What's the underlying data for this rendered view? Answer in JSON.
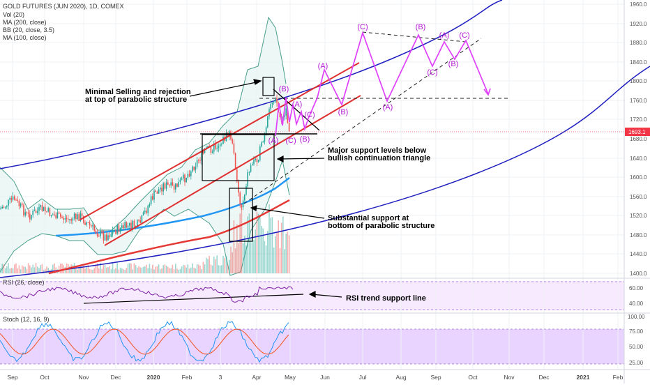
{
  "header": {
    "symbol_line": "GOLD FUTURES (JUN 2020), 1D, COMEX",
    "indicators": [
      "Vol (20)",
      "MA (200, close)",
      "BB (20, close, 3.5)",
      "MA (100, close)"
    ]
  },
  "price_axis": {
    "ticks": [
      "1960.0",
      "1920.0",
      "1880.0",
      "1840.0",
      "1800.0",
      "1760.0",
      "1720.0",
      "1680.0",
      "1640.0",
      "1600.0",
      "1560.0",
      "1520.0",
      "1480.0",
      "1440.0",
      "1400.0"
    ],
    "current_price": "1693.1"
  },
  "rsi_panel": {
    "label": "RSI (26, close)",
    "ticks": [
      "60.00",
      "40.00"
    ]
  },
  "stoch_panel": {
    "label": "Stoch (12, 16, 9)",
    "ticks": [
      "100.00",
      "75.00",
      "50.00",
      "25.00"
    ]
  },
  "time_axis": [
    "Sep",
    "Oct",
    "Nov",
    "Dec",
    "2020",
    "Feb",
    "3",
    "Apr",
    "May",
    "Jun",
    "Jul",
    "Aug",
    "Sep",
    "Oct",
    "Nov",
    "Dec",
    "2021",
    "Feb"
  ],
  "annotations": {
    "top_rejection": [
      "Minimal Selling and rejection",
      "at top of parabolic structure"
    ],
    "major_support": [
      "Major support levels below",
      "bullish continuation triangle"
    ],
    "bottom_support": [
      "Substantial support at",
      "bottom of parabolic structure"
    ],
    "rsi_support": "RSI trend support line"
  },
  "wave_labels": [
    "(A)",
    "(B)",
    "(C)",
    "(A)",
    "(B)",
    "(C)",
    "(A)",
    "(B)",
    "(C)",
    "(A)",
    "(B)",
    "(C)",
    "(A)",
    "(B)",
    "(C)"
  ],
  "colors": {
    "up": "#26a69a",
    "down": "#ef5350",
    "channel_red": "#e03030",
    "blue_curve": "#1f1fbf",
    "ma_blue": "#2196f3",
    "ma_red": "#e53935",
    "projection": "#e040fb",
    "bb_fill": "#e6f4f2",
    "panel_fill": "#f1dcff",
    "stoch_fill": "#e1c6ff",
    "price_tag": "#f23645"
  },
  "chart_data": {
    "type": "candlestick",
    "instrument": "GOLD FUTURES (JUN 2020), 1D, COMEX",
    "y_range": [
      1390,
      1970
    ],
    "current_price": 1693.1,
    "price_path": [
      {
        "x": "2019-09",
        "y": 1530
      },
      {
        "x": "2019-10",
        "y": 1500
      },
      {
        "x": "2019-11",
        "y": 1515
      },
      {
        "x": "2019-12",
        "y": 1480
      },
      {
        "x": "2020-01",
        "y": 1560
      },
      {
        "x": "2020-02",
        "y": 1590
      },
      {
        "x": "2020-03",
        "y": 1500
      },
      {
        "x": "2020-04",
        "y": 1700
      },
      {
        "x": "2020-05",
        "y": 1693
      }
    ],
    "rsi_range": [
      30,
      70
    ],
    "stoch_range": [
      15,
      100
    ]
  }
}
